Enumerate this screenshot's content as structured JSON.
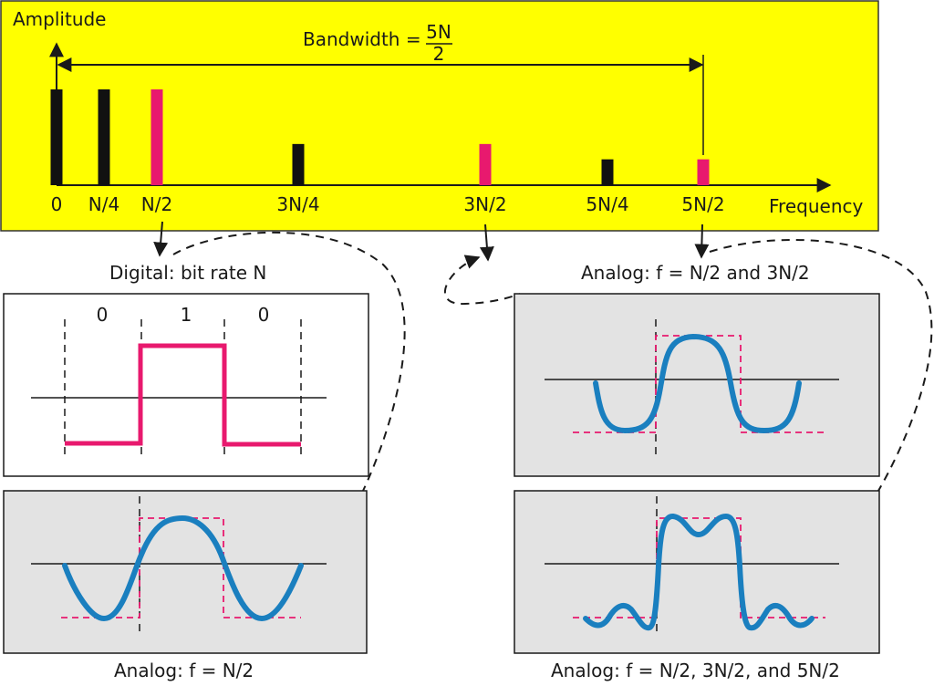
{
  "spectrum": {
    "y_label": "Amplitude",
    "x_label": "Frequency",
    "bandwidth_label": "Bandwidth =",
    "bandwidth_num": "5N",
    "bandwidth_den": "2",
    "ticks": [
      "0",
      "N/4",
      "N/2",
      "3N/4",
      "3N/2",
      "5N/4",
      "5N/2"
    ],
    "background_color": "#ffff00",
    "pink_color": "#e8196e",
    "black_color": "#111111"
  },
  "chart_data": {
    "type": "bar",
    "categories": [
      "0",
      "N/4",
      "N/2",
      "3N/4",
      "3N/2",
      "5N/4",
      "5N/2"
    ],
    "values": [
      1.0,
      1.0,
      1.0,
      0.43,
      0.43,
      0.27,
      0.27
    ],
    "highlighted": [
      false,
      false,
      true,
      false,
      true,
      false,
      true
    ],
    "xlabel": "Frequency",
    "ylabel": "Amplitude"
  },
  "panels": {
    "digital_title": "Digital: bit rate N",
    "bits": [
      "0",
      "1",
      "0"
    ],
    "analog1_title": "Analog: f = N/2",
    "analog2_title": "Analog: f = N/2 and 3N/2",
    "analog3_title": "Analog: f = N/2, 3N/2, and 5N/2",
    "blue_color": "#1a7fbf",
    "panel_gray": "#e3e3e3"
  }
}
